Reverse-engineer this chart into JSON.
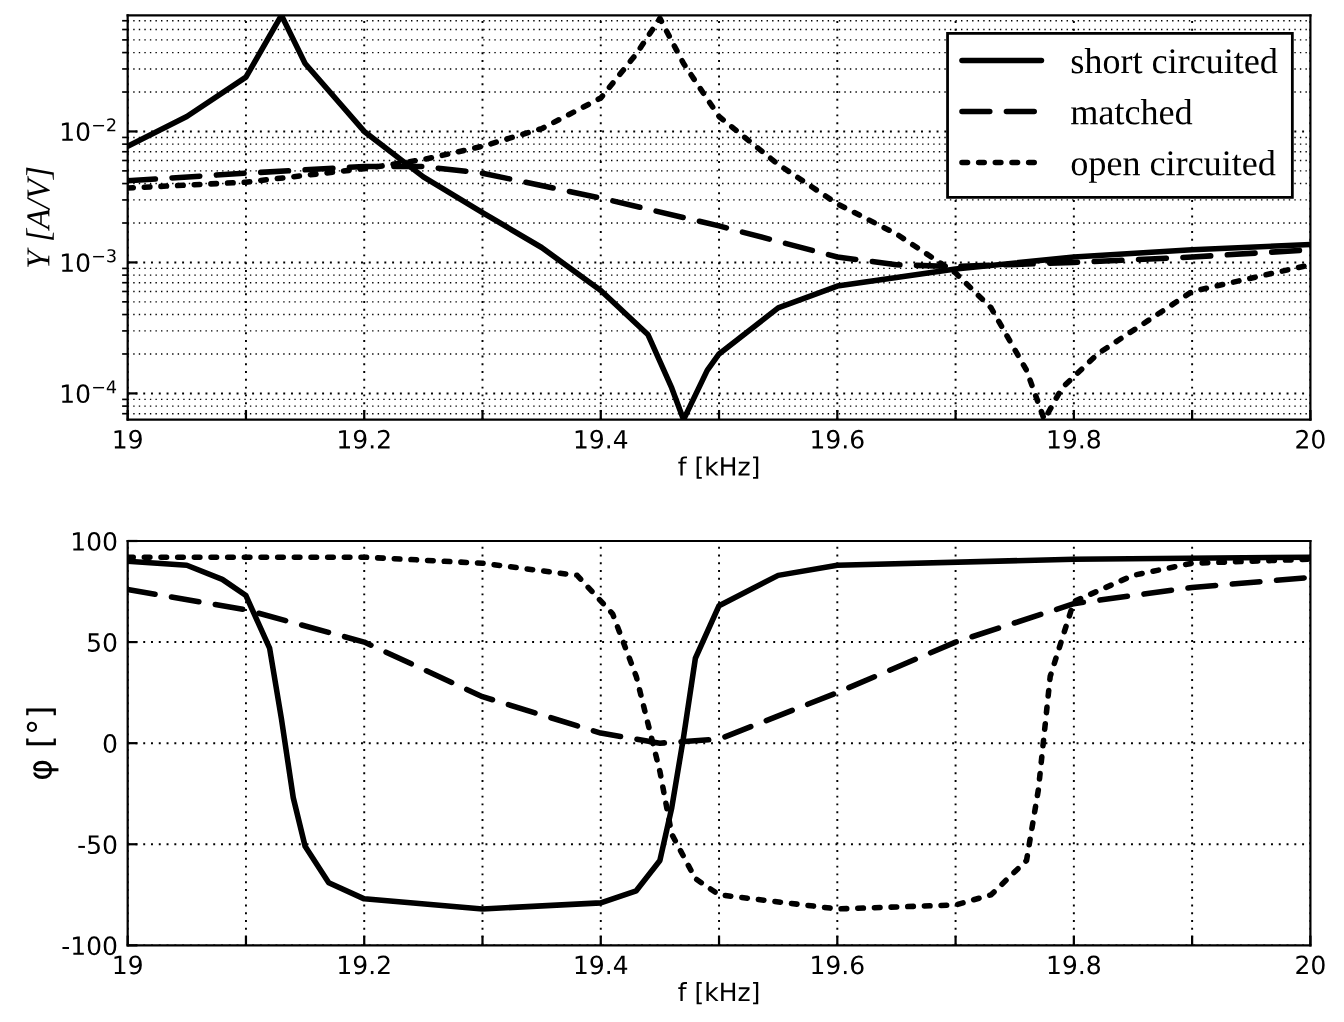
{
  "chart_data": [
    {
      "type": "line",
      "xlabel": "f [kHz]",
      "ylabel": "Y [A/V]",
      "log": "y",
      "grid": true,
      "legend": "top right",
      "xlim": [
        19,
        20
      ],
      "xticks": [
        19,
        {
          "value": 19.1,
          "label": null
        },
        19.2,
        {
          "value": 19.3,
          "label": null
        },
        19.4,
        {
          "value": 19.5,
          "label": null
        },
        19.6,
        {
          "value": 19.7,
          "label": null
        },
        19.8,
        {
          "value": 19.9,
          "label": null
        },
        20
      ],
      "ylim": [
        6.3e-05,
        0.077
      ],
      "yticks": [
        {
          "value": 0.0001,
          "label": "10$^{−4}$"
        },
        {
          "value": 0.001,
          "label": "10$^{−3}$"
        },
        {
          "value": 0.01,
          "label": "10$^{−2}$"
        }
      ],
      "series": [
        {
          "name": "short circuited",
          "color": "#000000",
          "line_style": "solid",
          "x": [
            19.0,
            19.05,
            19.1,
            19.13,
            19.15,
            19.2,
            19.25,
            19.3,
            19.35,
            19.4,
            19.44,
            19.46,
            19.47,
            19.49,
            19.5,
            19.55,
            19.6,
            19.7,
            19.8,
            19.9,
            20.0
          ],
          "values": [
            0.0077,
            0.013,
            0.026,
            0.077,
            0.033,
            0.01,
            0.0045,
            0.0024,
            0.0013,
            0.00061,
            0.00028,
            0.00011,
            6.3e-05,
            0.00015,
            0.0002,
            0.00045,
            0.00066,
            0.00089,
            0.0011,
            0.00125,
            0.00137
          ]
        },
        {
          "name": "matched",
          "color": "#000000",
          "line_style": "dashed",
          "x": [
            19.0,
            19.1,
            19.2,
            19.25,
            19.3,
            19.4,
            19.5,
            19.6,
            19.65,
            19.7,
            19.8,
            19.9,
            20.0
          ],
          "values": [
            0.0042,
            0.0048,
            0.0054,
            0.0054,
            0.0048,
            0.0031,
            0.0019,
            0.0011,
            0.00096,
            0.00093,
            0.001,
            0.0011,
            0.00125
          ]
        },
        {
          "name": "open circuited",
          "color": "#000000",
          "line_style": "dotted",
          "x": [
            19.0,
            19.1,
            19.2,
            19.25,
            19.3,
            19.35,
            19.4,
            19.43,
            19.45,
            19.47,
            19.5,
            19.55,
            19.6,
            19.65,
            19.7,
            19.73,
            19.76,
            19.775,
            19.79,
            19.82,
            19.9,
            20.0
          ],
          "values": [
            0.0037,
            0.0041,
            0.0052,
            0.0061,
            0.0077,
            0.0105,
            0.018,
            0.039,
            0.073,
            0.033,
            0.013,
            0.0056,
            0.0028,
            0.00165,
            0.00083,
            0.00045,
            0.00015,
            6.3e-05,
            0.00011,
            0.0002,
            0.0006,
            0.00096
          ]
        }
      ]
    },
    {
      "type": "line",
      "xlabel": "f [kHz]",
      "ylabel": "φ [°]",
      "grid": true,
      "xlim": [
        19,
        20
      ],
      "xticks": [
        19,
        {
          "value": 19.1,
          "label": null
        },
        19.2,
        {
          "value": 19.3,
          "label": null
        },
        19.4,
        {
          "value": 19.5,
          "label": null
        },
        19.6,
        {
          "value": 19.7,
          "label": null
        },
        19.8,
        {
          "value": 19.9,
          "label": null
        },
        20
      ],
      "ylim": [
        -100,
        100
      ],
      "yticks": [
        -100,
        -50,
        0,
        50,
        100
      ],
      "series": [
        {
          "color": "#000000",
          "line_style": "solid",
          "x": [
            19.0,
            19.05,
            19.08,
            19.1,
            19.12,
            19.13,
            19.14,
            19.15,
            19.17,
            19.2,
            19.3,
            19.4,
            19.43,
            19.45,
            19.46,
            19.47,
            19.48,
            19.5,
            19.55,
            19.6,
            19.8,
            20.0
          ],
          "values": [
            90,
            88,
            81,
            73,
            47,
            12,
            -27,
            -51,
            -69,
            -77,
            -82,
            -79,
            -73,
            -58,
            -32,
            3,
            42,
            68,
            83,
            88,
            91,
            92
          ]
        },
        {
          "color": "#000000",
          "line_style": "dashed",
          "x": [
            19.0,
            19.1,
            19.2,
            19.3,
            19.4,
            19.45,
            19.5,
            19.6,
            19.7,
            19.8,
            19.9,
            20.0
          ],
          "values": [
            76,
            66,
            50,
            23,
            5,
            0,
            2,
            25,
            50,
            69,
            77,
            82
          ]
        },
        {
          "color": "#000000",
          "line_style": "dotted",
          "x": [
            19.0,
            19.2,
            19.3,
            19.38,
            19.41,
            19.43,
            19.45,
            19.46,
            19.48,
            19.5,
            19.6,
            19.7,
            19.73,
            19.76,
            19.77,
            19.78,
            19.8,
            19.85,
            19.9,
            20.0
          ],
          "values": [
            92,
            92,
            89,
            83,
            64,
            33,
            -14,
            -45,
            -67,
            -75,
            -82,
            -80,
            -75,
            -58,
            -23,
            33,
            70,
            83,
            89,
            91
          ]
        }
      ]
    }
  ]
}
